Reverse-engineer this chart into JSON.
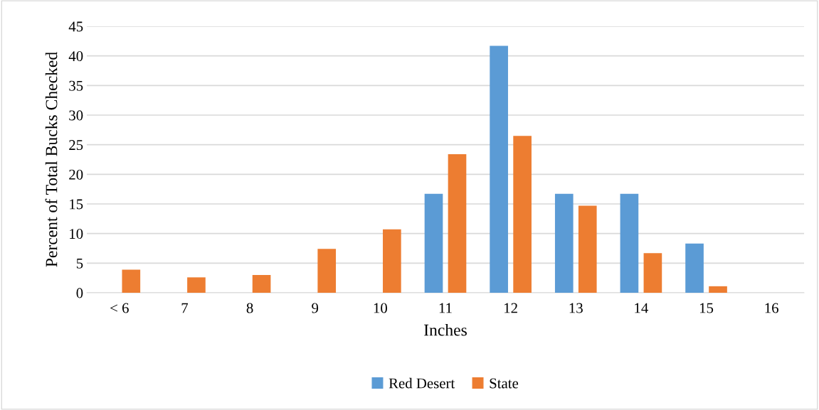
{
  "chart_data": {
    "type": "bar",
    "xlabel": "Inches",
    "ylabel": "Percent of Total Bucks Checked",
    "categories": [
      "< 6",
      "7",
      "8",
      "9",
      "10",
      "11",
      "12",
      "13",
      "14",
      "15",
      "16"
    ],
    "series": [
      {
        "name": "Red Desert",
        "color": "#5b9bd5",
        "values": [
          0,
          0,
          0,
          0,
          0,
          16.7,
          41.7,
          16.7,
          16.7,
          8.3,
          0
        ]
      },
      {
        "name": "State",
        "color": "#ed7d31",
        "values": [
          3.9,
          2.6,
          3.0,
          7.4,
          10.7,
          23.4,
          26.5,
          14.7,
          6.7,
          1.1,
          0
        ]
      }
    ],
    "ylim": [
      0,
      45
    ],
    "yticks": [
      0,
      5,
      10,
      15,
      20,
      25,
      30,
      35,
      40,
      45
    ],
    "grid": "y",
    "legend": "bottom"
  }
}
